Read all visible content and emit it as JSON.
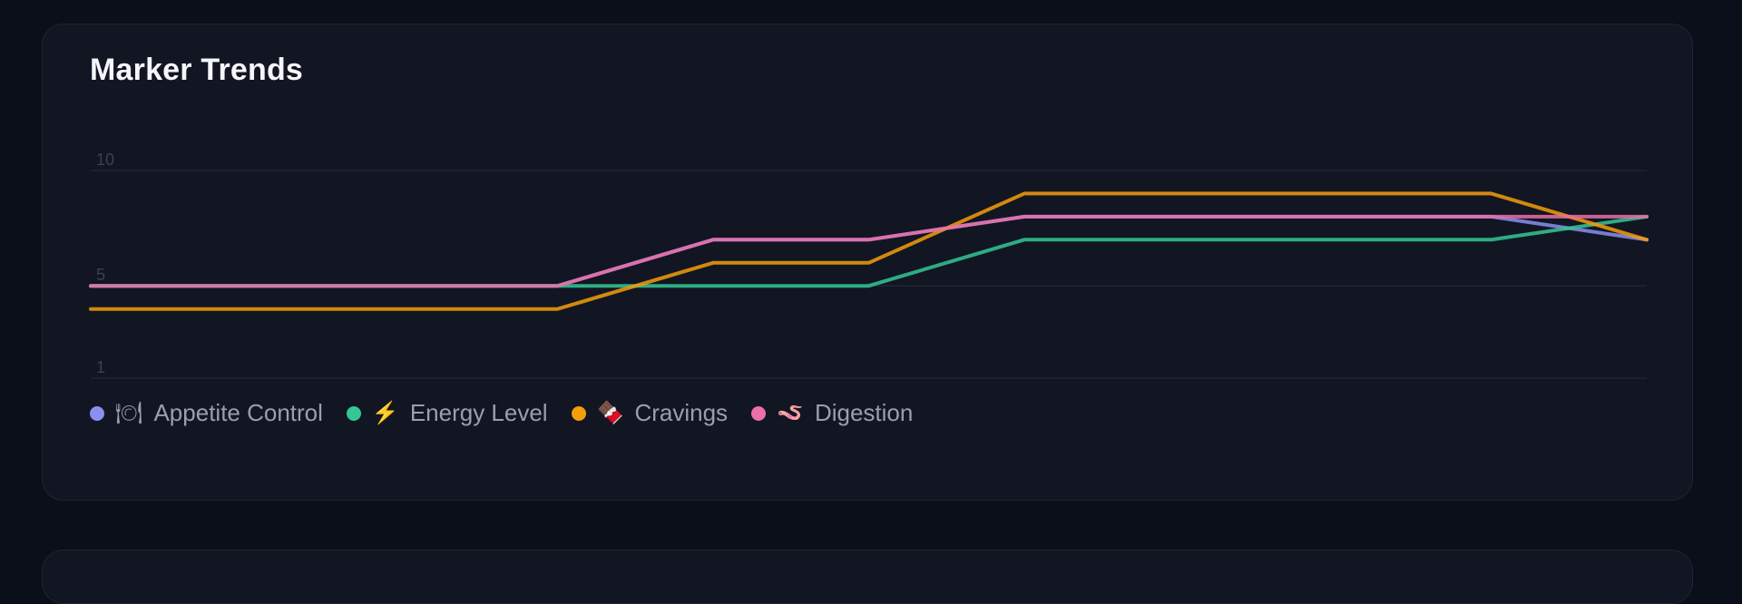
{
  "card": {
    "title": "Marker Trends"
  },
  "chart_data": {
    "type": "line",
    "title": "Marker Trends",
    "xlabel": "",
    "ylabel": "",
    "ylim": [
      1,
      10
    ],
    "yticks": [
      "10",
      "5",
      "1"
    ],
    "grid": true,
    "legend_position": "bottom-left",
    "x": [
      1,
      2,
      3,
      4,
      5,
      6,
      7,
      8,
      9,
      10,
      11
    ],
    "series": [
      {
        "name": "Appetite Control",
        "icon": "🍽",
        "color": "#8b8ff0",
        "values": [
          5,
          5,
          5,
          5,
          7,
          7,
          8,
          8,
          8,
          8,
          7
        ]
      },
      {
        "name": "Energy Level",
        "icon": "⚡",
        "color": "#34c793",
        "values": [
          5,
          5,
          5,
          5,
          5,
          5,
          7,
          7,
          7,
          7,
          8
        ]
      },
      {
        "name": "Cravings",
        "icon": "🍫",
        "color": "#f59e0b",
        "values": [
          4,
          4,
          4,
          4,
          6,
          6,
          9,
          9,
          9,
          9,
          7
        ]
      },
      {
        "name": "Digestion",
        "icon": "🪱",
        "color": "#ec6fa8",
        "values": [
          5,
          5,
          5,
          5,
          7,
          7,
          8,
          8,
          8,
          8,
          8
        ]
      }
    ]
  }
}
